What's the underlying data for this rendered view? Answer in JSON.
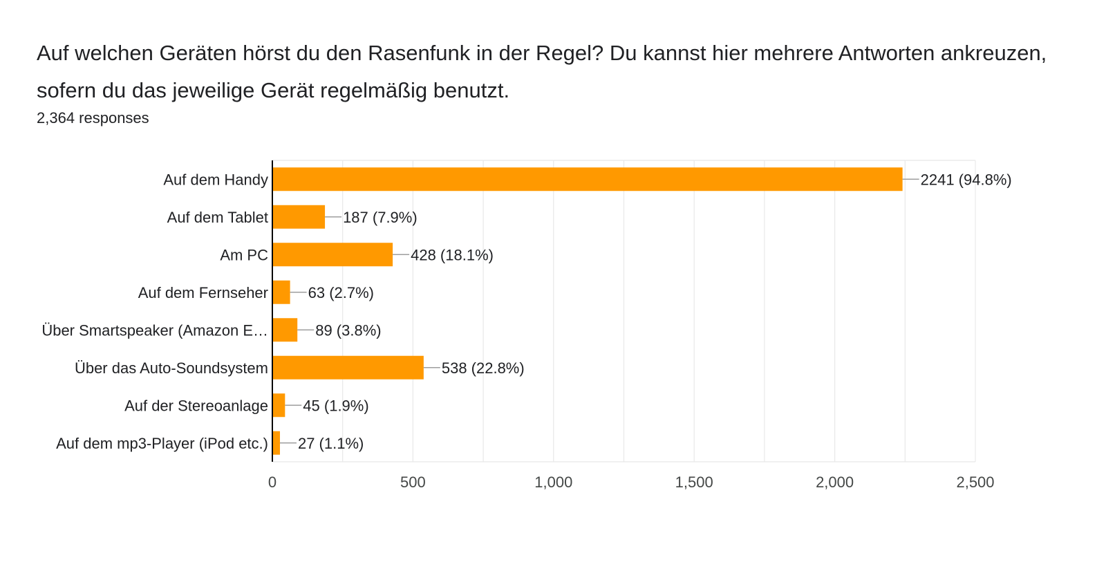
{
  "question": {
    "title": "Auf welchen Geräten hörst du den Rasenfunk in der Regel?  Du kannst hier mehrere Antworten ankreuzen, sofern du das jeweilige Gerät regelmäßig benutzt.",
    "responses": "2,364 responses"
  },
  "colors": {
    "bar": "#ff9900",
    "grid": "#e8e8e8",
    "axis": "#000000",
    "leader": "#9e9e9e"
  },
  "chart_data": {
    "type": "bar",
    "orientation": "horizontal",
    "categories": [
      "Auf dem Handy",
      "Auf dem Tablet",
      "Am PC",
      "Auf dem Fernseher",
      "Über Smartspeaker (Amazon E…",
      "Über das Auto-Soundsystem",
      "Auf der Stereoanlage",
      "Auf dem mp3-Player (iPod etc.)"
    ],
    "values": [
      2241,
      187,
      428,
      63,
      89,
      538,
      45,
      27
    ],
    "data_labels": [
      "2241 (94.8%)",
      "187 (7.9%)",
      "428 (18.1%)",
      "63 (2.7%)",
      "89 (3.8%)",
      "538 (22.8%)",
      "45 (1.9%)",
      "27 (1.1%)"
    ],
    "xlim": [
      0,
      2500
    ],
    "xticks": [
      0,
      500,
      1000,
      1500,
      2000,
      2500
    ],
    "xtick_labels": [
      "0",
      "500",
      "1,000",
      "1,500",
      "2,000",
      "2,500"
    ],
    "grid": true,
    "title": "",
    "xlabel": "",
    "ylabel": ""
  }
}
